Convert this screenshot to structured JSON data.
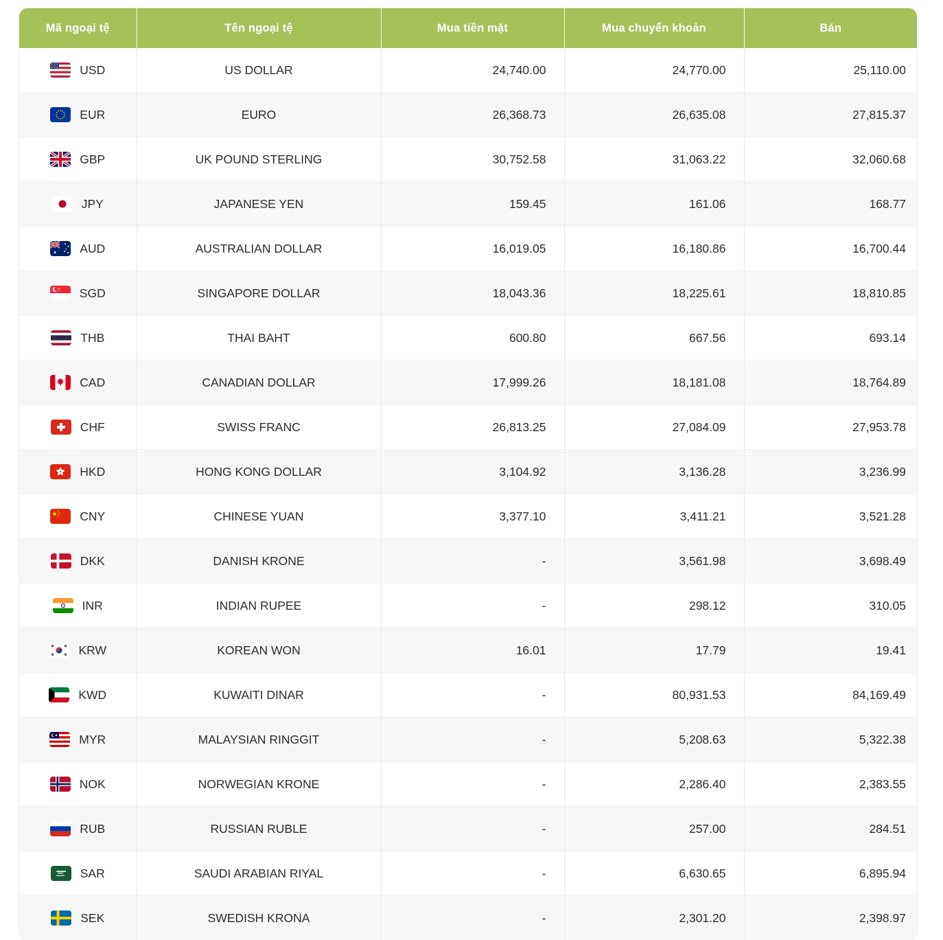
{
  "colors": {
    "header_bg": "#a5c158",
    "header_text": "#ffffff",
    "row_alt_bg": "#f7f7f8",
    "body_text": "#2c2c2e",
    "grid_line": "#e8e8ea"
  },
  "table": {
    "columns": [
      {
        "key": "code",
        "label": "Mã ngoại tệ"
      },
      {
        "key": "name",
        "label": "Tên ngoại tệ"
      },
      {
        "key": "cash",
        "label": "Mua tiền mặt"
      },
      {
        "key": "transfer",
        "label": "Mua chuyển khoản"
      },
      {
        "key": "sell",
        "label": "Bán"
      }
    ],
    "rows": [
      {
        "code": "USD",
        "flag_icon": "flag-usd",
        "name": "US DOLLAR",
        "cash": "24,740.00",
        "transfer": "24,770.00",
        "sell": "25,110.00"
      },
      {
        "code": "EUR",
        "flag_icon": "flag-eur",
        "name": "EURO",
        "cash": "26,368.73",
        "transfer": "26,635.08",
        "sell": "27,815.37"
      },
      {
        "code": "GBP",
        "flag_icon": "flag-gbp",
        "name": "UK POUND STERLING",
        "cash": "30,752.58",
        "transfer": "31,063.22",
        "sell": "32,060.68"
      },
      {
        "code": "JPY",
        "flag_icon": "flag-jpy",
        "name": "JAPANESE YEN",
        "cash": "159.45",
        "transfer": "161.06",
        "sell": "168.77"
      },
      {
        "code": "AUD",
        "flag_icon": "flag-aud",
        "name": "AUSTRALIAN DOLLAR",
        "cash": "16,019.05",
        "transfer": "16,180.86",
        "sell": "16,700.44"
      },
      {
        "code": "SGD",
        "flag_icon": "flag-sgd",
        "name": "SINGAPORE DOLLAR",
        "cash": "18,043.36",
        "transfer": "18,225.61",
        "sell": "18,810.85"
      },
      {
        "code": "THB",
        "flag_icon": "flag-thb",
        "name": "THAI BAHT",
        "cash": "600.80",
        "transfer": "667.56",
        "sell": "693.14"
      },
      {
        "code": "CAD",
        "flag_icon": "flag-cad",
        "name": "CANADIAN DOLLAR",
        "cash": "17,999.26",
        "transfer": "18,181.08",
        "sell": "18,764.89"
      },
      {
        "code": "CHF",
        "flag_icon": "flag-chf",
        "name": "SWISS FRANC",
        "cash": "26,813.25",
        "transfer": "27,084.09",
        "sell": "27,953.78"
      },
      {
        "code": "HKD",
        "flag_icon": "flag-hkd",
        "name": "HONG KONG DOLLAR",
        "cash": "3,104.92",
        "transfer": "3,136.28",
        "sell": "3,236.99"
      },
      {
        "code": "CNY",
        "flag_icon": "flag-cny",
        "name": "CHINESE YUAN",
        "cash": "3,377.10",
        "transfer": "3,411.21",
        "sell": "3,521.28"
      },
      {
        "code": "DKK",
        "flag_icon": "flag-dkk",
        "name": "DANISH KRONE",
        "cash": "-",
        "transfer": "3,561.98",
        "sell": "3,698.49"
      },
      {
        "code": "INR",
        "flag_icon": "flag-inr",
        "name": "INDIAN RUPEE",
        "cash": "-",
        "transfer": "298.12",
        "sell": "310.05"
      },
      {
        "code": "KRW",
        "flag_icon": "flag-krw",
        "name": "KOREAN WON",
        "cash": "16.01",
        "transfer": "17.79",
        "sell": "19.41"
      },
      {
        "code": "KWD",
        "flag_icon": "flag-kwd",
        "name": "KUWAITI DINAR",
        "cash": "-",
        "transfer": "80,931.53",
        "sell": "84,169.49"
      },
      {
        "code": "MYR",
        "flag_icon": "flag-myr",
        "name": "MALAYSIAN RINGGIT",
        "cash": "-",
        "transfer": "5,208.63",
        "sell": "5,322.38"
      },
      {
        "code": "NOK",
        "flag_icon": "flag-nok",
        "name": "NORWEGIAN KRONE",
        "cash": "-",
        "transfer": "2,286.40",
        "sell": "2,383.55"
      },
      {
        "code": "RUB",
        "flag_icon": "flag-rub",
        "name": "RUSSIAN RUBLE",
        "cash": "-",
        "transfer": "257.00",
        "sell": "284.51"
      },
      {
        "code": "SAR",
        "flag_icon": "flag-sar",
        "name": "SAUDI ARABIAN RIYAL",
        "cash": "-",
        "transfer": "6,630.65",
        "sell": "6,895.94"
      },
      {
        "code": "SEK",
        "flag_icon": "flag-sek",
        "name": "SWEDISH KRONA",
        "cash": "-",
        "transfer": "2,301.20",
        "sell": "2,398.97"
      }
    ]
  }
}
